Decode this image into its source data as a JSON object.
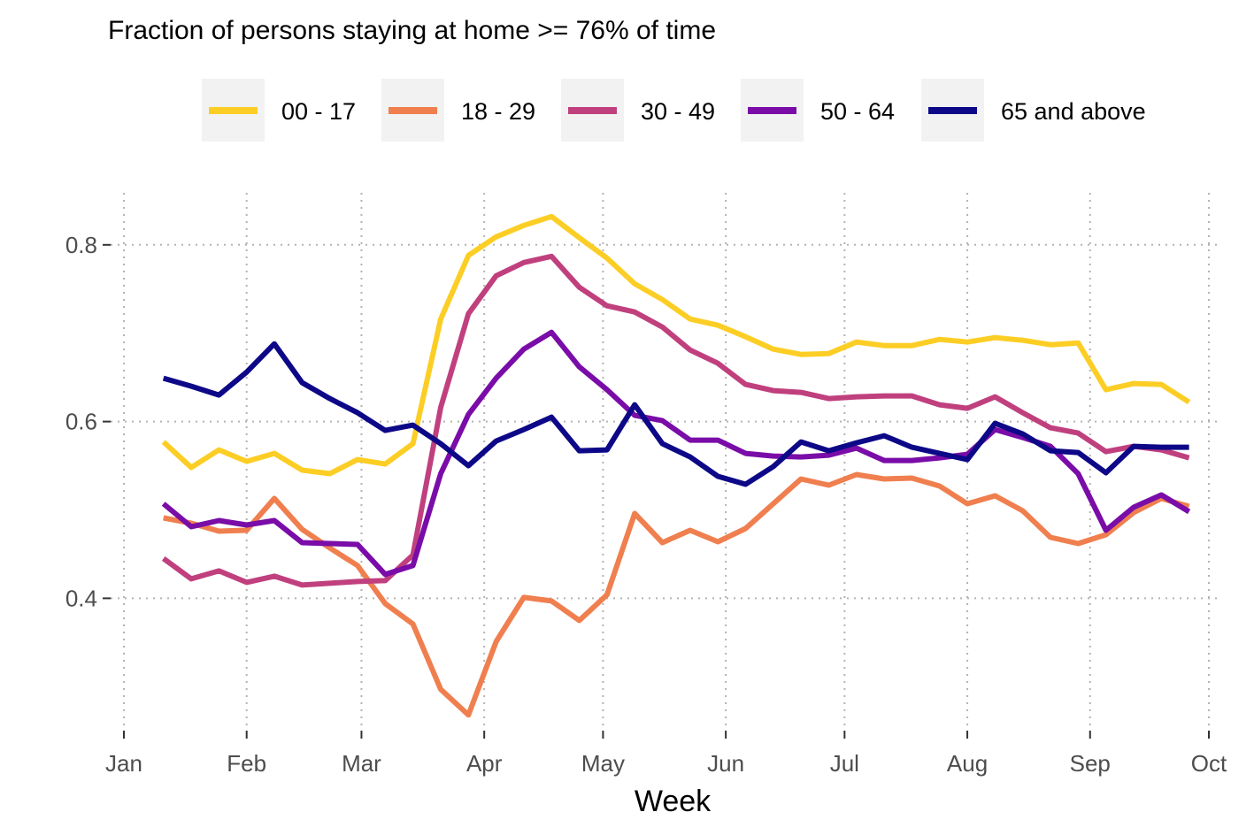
{
  "chart_data": {
    "type": "line",
    "title": "Fraction of persons staying at home >= 76% of time",
    "xlabel": "Week",
    "ylabel": "",
    "x_ticks": [
      "Jan",
      "Feb",
      "Mar",
      "Apr",
      "May",
      "Jun",
      "Jul",
      "Aug",
      "Sep",
      "Oct"
    ],
    "y_ticks": [
      0.4,
      0.6,
      0.8
    ],
    "ylim": [
      0.25,
      0.86
    ],
    "grid": true,
    "legend_position": "top",
    "x": [
      "2020-01-11",
      "2020-01-18",
      "2020-01-25",
      "2020-02-01",
      "2020-02-08",
      "2020-02-15",
      "2020-02-22",
      "2020-02-29",
      "2020-03-07",
      "2020-03-14",
      "2020-03-21",
      "2020-03-28",
      "2020-04-04",
      "2020-04-11",
      "2020-04-18",
      "2020-04-25",
      "2020-05-02",
      "2020-05-09",
      "2020-05-16",
      "2020-05-23",
      "2020-05-30",
      "2020-06-06",
      "2020-06-13",
      "2020-06-20",
      "2020-06-27",
      "2020-07-04",
      "2020-07-11",
      "2020-07-18",
      "2020-07-25",
      "2020-08-01",
      "2020-08-08",
      "2020-08-15",
      "2020-08-22",
      "2020-08-29",
      "2020-09-05",
      "2020-09-12",
      "2020-09-19",
      "2020-09-26"
    ],
    "series": [
      {
        "name": "00 - 17",
        "color": "#fcce25",
        "values": [
          0.577,
          0.548,
          0.568,
          0.555,
          0.564,
          0.545,
          0.541,
          0.557,
          0.552,
          0.575,
          0.716,
          0.788,
          0.809,
          0.822,
          0.832,
          0.808,
          0.785,
          0.756,
          0.738,
          0.716,
          0.709,
          0.696,
          0.682,
          0.676,
          0.677,
          0.69,
          0.686,
          0.686,
          0.693,
          0.69,
          0.695,
          0.692,
          0.687,
          0.689,
          0.636,
          0.643,
          0.642,
          0.622
        ]
      },
      {
        "name": "18 - 29",
        "color": "#f07f4f",
        "values": [
          0.491,
          0.485,
          0.476,
          0.477,
          0.513,
          0.478,
          0.457,
          0.437,
          0.394,
          0.371,
          0.297,
          0.268,
          0.351,
          0.401,
          0.397,
          0.375,
          0.404,
          0.496,
          0.463,
          0.477,
          0.464,
          0.479,
          0.507,
          0.535,
          0.528,
          0.54,
          0.535,
          0.536,
          0.527,
          0.507,
          0.516,
          0.499,
          0.469,
          0.462,
          0.472,
          0.497,
          0.513,
          0.504
        ]
      },
      {
        "name": "30 - 49",
        "color": "#c0407e",
        "values": [
          0.445,
          0.422,
          0.431,
          0.418,
          0.425,
          0.415,
          0.417,
          0.419,
          0.42,
          0.449,
          0.616,
          0.722,
          0.765,
          0.78,
          0.787,
          0.752,
          0.731,
          0.724,
          0.707,
          0.681,
          0.666,
          0.642,
          0.635,
          0.633,
          0.626,
          0.628,
          0.629,
          0.629,
          0.619,
          0.615,
          0.628,
          0.61,
          0.593,
          0.587,
          0.566,
          0.572,
          0.568,
          0.559
        ]
      },
      {
        "name": "50 - 64",
        "color": "#7a0ca8",
        "values": [
          0.507,
          0.481,
          0.488,
          0.483,
          0.488,
          0.463,
          0.462,
          0.461,
          0.427,
          0.437,
          0.541,
          0.608,
          0.649,
          0.682,
          0.701,
          0.662,
          0.636,
          0.607,
          0.601,
          0.579,
          0.579,
          0.564,
          0.561,
          0.56,
          0.562,
          0.57,
          0.556,
          0.556,
          0.559,
          0.563,
          0.591,
          0.582,
          0.572,
          0.541,
          0.477,
          0.503,
          0.517,
          0.498
        ]
      },
      {
        "name": "65 and above",
        "color": "#0d0887",
        "values": [
          0.649,
          0.64,
          0.63,
          0.656,
          0.688,
          0.644,
          0.626,
          0.61,
          0.59,
          0.596,
          0.575,
          0.55,
          0.578,
          0.591,
          0.605,
          0.567,
          0.568,
          0.619,
          0.575,
          0.56,
          0.538,
          0.529,
          0.549,
          0.577,
          0.567,
          0.576,
          0.584,
          0.571,
          0.564,
          0.557,
          0.598,
          0.586,
          0.567,
          0.565,
          0.542,
          0.572,
          0.571,
          0.571
        ]
      }
    ]
  }
}
